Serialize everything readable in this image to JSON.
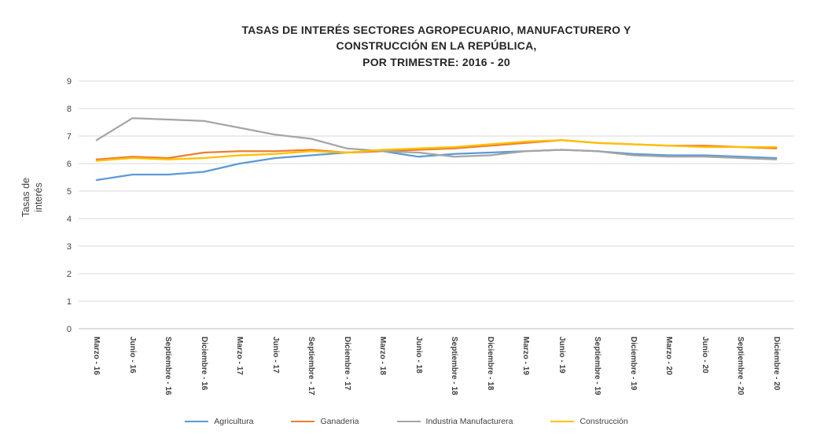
{
  "chart_data": {
    "type": "line",
    "title": "TASAS DE INTERÉS SECTORES AGROPECUARIO, MANUFACTURERO Y\nCONSTRUCCIÓN EN LA REPÚBLICA,\nPOR TRIMESTRE: 2016 - 20",
    "ylabel": "Tasas de\ninterés",
    "xlabel": "",
    "ylim": [
      0,
      9
    ],
    "y_ticks": [
      0,
      1,
      2,
      3,
      4,
      5,
      6,
      7,
      8,
      9
    ],
    "grid": true,
    "legend_position": "bottom",
    "categories": [
      "Marzo - 16",
      "Junio - 16",
      "Septiembre - 16",
      "Diciembre - 16",
      "Marzo - 17",
      "Junio - 17",
      "Septiembre - 17",
      "Diciembre - 17",
      "Marzo - 18",
      "Junio - 18",
      "Septiembre - 18",
      "Diciembre - 18",
      "Marzo - 19",
      "Junio - 19",
      "Septiembre - 19",
      "Diciembre - 19",
      "Marzo - 20",
      "Junio - 20",
      "Septiembre - 20",
      "Diciembre - 20"
    ],
    "series": [
      {
        "name": "Agricultura",
        "color": "#5B9BD5",
        "values": [
          5.4,
          5.6,
          5.6,
          5.7,
          6.0,
          6.2,
          6.3,
          6.4,
          6.45,
          6.25,
          6.35,
          6.4,
          6.45,
          6.5,
          6.45,
          6.35,
          6.3,
          6.3,
          6.25,
          6.2
        ]
      },
      {
        "name": "Ganaderia",
        "color": "#ED7D31",
        "values": [
          6.15,
          6.25,
          6.2,
          6.4,
          6.45,
          6.45,
          6.5,
          6.4,
          6.45,
          6.5,
          6.55,
          6.65,
          6.75,
          6.85,
          6.75,
          6.7,
          6.65,
          6.65,
          6.6,
          6.55
        ]
      },
      {
        "name": "Industria Manufacturera",
        "color": "#A5A5A5",
        "values": [
          6.85,
          7.65,
          7.6,
          7.55,
          7.3,
          7.05,
          6.9,
          6.55,
          6.45,
          6.4,
          6.25,
          6.3,
          6.45,
          6.5,
          6.45,
          6.3,
          6.25,
          6.25,
          6.2,
          6.15
        ]
      },
      {
        "name": "Construcción",
        "color": "#FFC000",
        "values": [
          6.1,
          6.2,
          6.15,
          6.2,
          6.3,
          6.35,
          6.45,
          6.4,
          6.5,
          6.55,
          6.6,
          6.7,
          6.8,
          6.85,
          6.75,
          6.7,
          6.65,
          6.6,
          6.6,
          6.6
        ]
      }
    ],
    "grid_color": "#D9D9D9",
    "axis_line_color": "#BFBFBF"
  }
}
